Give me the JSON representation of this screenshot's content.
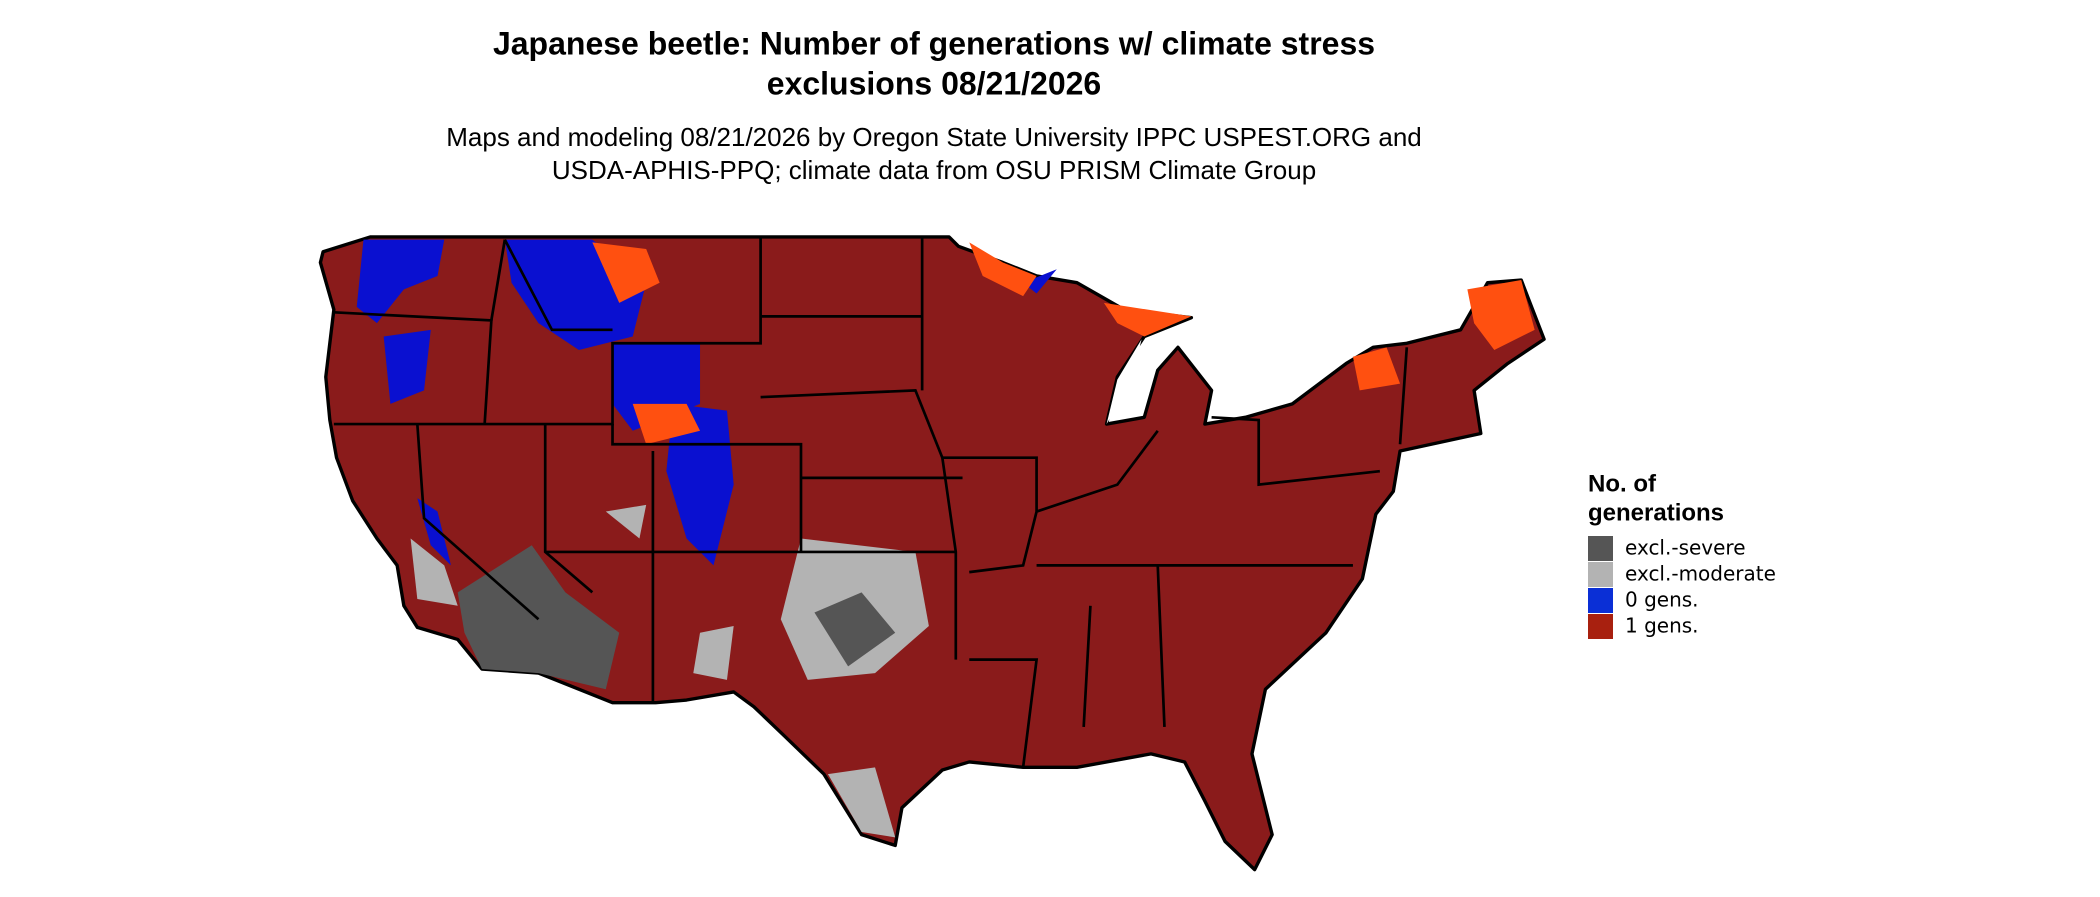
{
  "title": [
    "Japanese beetle: Number of generations w/ climate stress",
    "exclusions 08/21/2026"
  ],
  "subtitle": [
    "Maps and modeling 08/21/2026 by Oregon State University IPPC USPEST.ORG and",
    "USDA-APHIS-PPQ; climate data from OSU PRISM Climate Group"
  ],
  "legend": {
    "title": [
      "No. of",
      "generations"
    ],
    "items": [
      {
        "label": "excl.-severe",
        "color": "#555555"
      },
      {
        "label": "excl.-moderate",
        "color": "#b3b3b3"
      },
      {
        "label": "0 gens.",
        "color": "#0a2fd6"
      },
      {
        "label": "1 gens.",
        "color": "#a8200f"
      }
    ]
  }
}
